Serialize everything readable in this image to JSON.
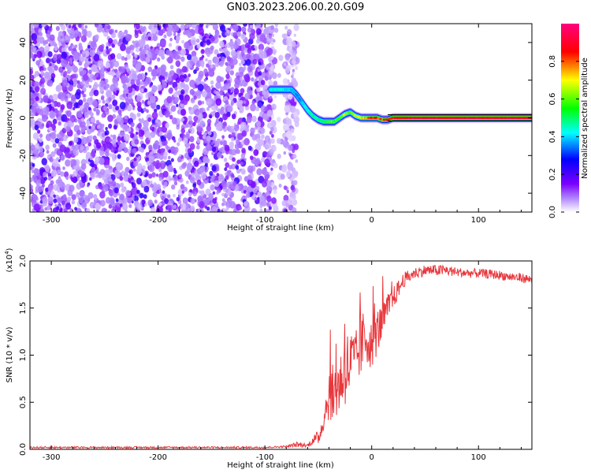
{
  "figure": {
    "title": "GN03.2023.206.00.20.G09"
  },
  "colorbar": {
    "label": "Normalized spectral amplitude",
    "ticks": [
      "0.0",
      "0.2",
      "0.4",
      "0.6",
      "0.8"
    ],
    "tick_values": [
      0.0,
      0.2,
      0.4,
      0.6,
      0.8
    ],
    "range": [
      0,
      1
    ],
    "colormap": [
      "#ffffff",
      "#7b00ff",
      "#0000ff",
      "#00ffff",
      "#00ff00",
      "#ffff00",
      "#ff0000",
      "#ff007f"
    ]
  },
  "chart_data": [
    {
      "type": "heatmap",
      "xlabel": "Height of straight line (km)",
      "ylabel": "Frequency (Hz)",
      "xlim": [
        -320,
        150
      ],
      "ylim": [
        -50,
        50
      ],
      "xticks": [
        -300,
        -200,
        -100,
        0,
        100
      ],
      "xtick_labels": [
        "-300",
        "-200",
        "-100",
        "0",
        "100"
      ],
      "yticks": [
        -40,
        -20,
        0,
        20,
        40
      ],
      "ytick_labels": [
        "-40",
        "-20",
        "0",
        "20",
        "40"
      ],
      "noise_region": {
        "x": [
          -320,
          -70
        ],
        "y": [
          -50,
          50
        ],
        "amplitude": [
          0.0,
          0.25
        ]
      },
      "ridge": {
        "x": [
          -95,
          -90,
          -85,
          -80,
          -75,
          -70,
          -65,
          -60,
          -55,
          -50,
          -45,
          -40,
          -35,
          -30,
          -25,
          -20,
          -15,
          -10,
          -5,
          0,
          5,
          10,
          15,
          20,
          40,
          60,
          80,
          100,
          120,
          150
        ],
        "y": [
          15,
          15,
          15,
          15,
          15,
          12,
          8,
          4,
          1,
          -1,
          -2,
          -2,
          -2,
          0,
          2,
          3,
          1,
          0,
          0,
          0,
          0,
          -1,
          -1,
          0,
          0,
          0,
          0,
          0,
          0,
          0
        ],
        "amplitude": [
          0.4,
          0.45,
          0.45,
          0.4,
          0.4,
          0.35,
          0.4,
          0.45,
          0.5,
          0.5,
          0.55,
          0.6,
          0.6,
          0.6,
          0.7,
          0.6,
          0.7,
          0.75,
          0.8,
          0.85,
          0.85,
          0.8,
          0.9,
          0.9,
          0.95,
          0.95,
          0.95,
          0.95,
          0.95,
          0.95
        ]
      }
    },
    {
      "type": "line",
      "xlabel": "Height of straight line (km)",
      "ylabel": "SNR (10 * v/v)",
      "y_multiplier_label": "(x10",
      "y_multiplier_exp": "4",
      "xlim": [
        -320,
        150
      ],
      "ylim": [
        0,
        2.0
      ],
      "xticks": [
        -300,
        -200,
        -100,
        0,
        100
      ],
      "xtick_labels": [
        "-300",
        "-200",
        "-100",
        "0",
        "100"
      ],
      "yticks": [
        0.0,
        0.5,
        1.0,
        1.5,
        2.0
      ],
      "ytick_labels": [
        "0.0",
        "0.5",
        "1.0",
        "1.5",
        "2.0"
      ],
      "color": "#e8383d",
      "series": [
        {
          "x": [
            -320,
            -300,
            -250,
            -200,
            -150,
            -100,
            -80,
            -70,
            -60,
            -55,
            -50,
            -45,
            -42,
            -40,
            -35,
            -30,
            -25,
            -20,
            -15,
            -10,
            -5,
            0,
            5,
            10,
            15,
            20,
            25,
            30,
            40,
            50,
            60,
            70,
            80,
            90,
            100,
            110,
            120,
            130,
            140,
            150
          ],
          "y": [
            0.02,
            0.02,
            0.02,
            0.02,
            0.02,
            0.02,
            0.03,
            0.05,
            0.04,
            0.1,
            0.12,
            0.3,
            0.5,
            0.6,
            0.6,
            0.7,
            0.85,
            0.9,
            0.95,
            1.1,
            1.2,
            1.1,
            1.25,
            1.35,
            1.5,
            1.6,
            1.7,
            1.8,
            1.87,
            1.9,
            1.9,
            1.9,
            1.88,
            1.87,
            1.87,
            1.86,
            1.85,
            1.83,
            1.82,
            1.8
          ],
          "noise": [
            0.01,
            0.01,
            0.01,
            0.01,
            0.01,
            0.01,
            0.01,
            0.03,
            0.02,
            0.05,
            0.08,
            0.1,
            0.2,
            0.3,
            0.3,
            0.35,
            0.4,
            0.4,
            0.3,
            0.35,
            0.3,
            0.25,
            0.25,
            0.2,
            0.15,
            0.12,
            0.1,
            0.08,
            0.06,
            0.06,
            0.06,
            0.06,
            0.05,
            0.05,
            0.05,
            0.05,
            0.05,
            0.05,
            0.05,
            0.05
          ]
        }
      ]
    }
  ]
}
